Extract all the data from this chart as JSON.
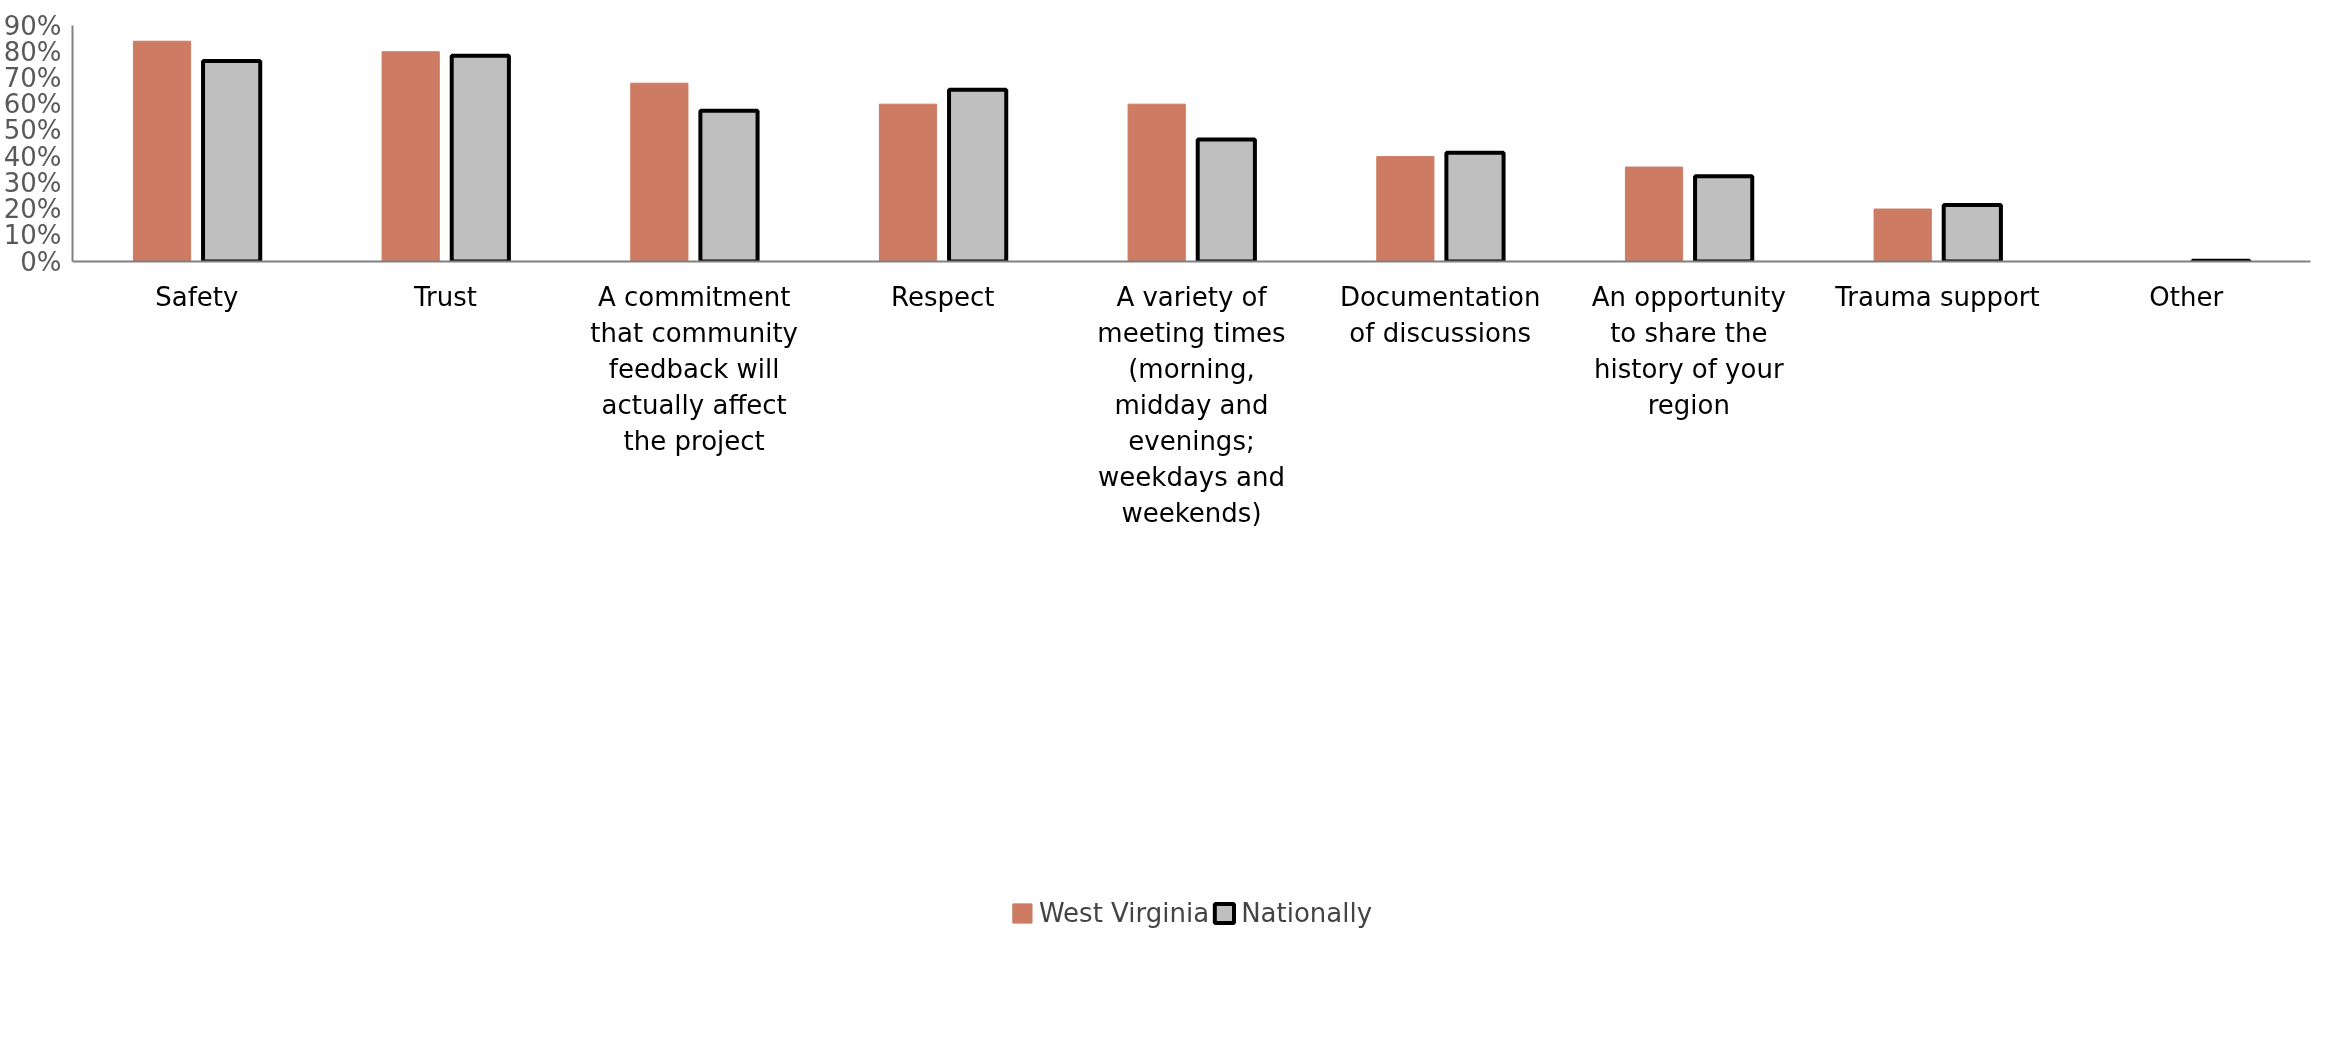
{
  "chart_data": {
    "type": "bar",
    "categories": [
      "Safety",
      "Trust",
      "A commitment that community feedback will actually affect the project",
      "Respect",
      "A variety of meeting times (morning, midday and evenings; weekdays and weekends)",
      "Documentation of discussions",
      "An opportunity to share the history of your region",
      "Trauma support",
      "Other"
    ],
    "series": [
      {
        "name": "West Virginia",
        "color": "#cd7b63",
        "values": [
          84,
          80,
          68,
          60,
          60,
          40,
          36,
          20,
          0
        ]
      },
      {
        "name": "Nationally",
        "color": "#bfbfbf",
        "values": [
          76.5,
          78.5,
          57.5,
          65.5,
          46.5,
          41.5,
          32.5,
          21.5,
          0.3
        ]
      }
    ],
    "ylim": [
      0,
      90
    ],
    "yticks": [
      {
        "value": 0,
        "label": "0%"
      },
      {
        "value": 10,
        "label": "10%"
      },
      {
        "value": 20,
        "label": "20%"
      },
      {
        "value": 30,
        "label": "30%"
      },
      {
        "value": 40,
        "label": "40%"
      },
      {
        "value": 50,
        "label": "50%"
      },
      {
        "value": 60,
        "label": "60%"
      },
      {
        "value": 70,
        "label": "70%"
      },
      {
        "value": 80,
        "label": "80%"
      },
      {
        "value": 90,
        "label": "90%"
      }
    ],
    "grid": false,
    "legend": "bottom"
  }
}
